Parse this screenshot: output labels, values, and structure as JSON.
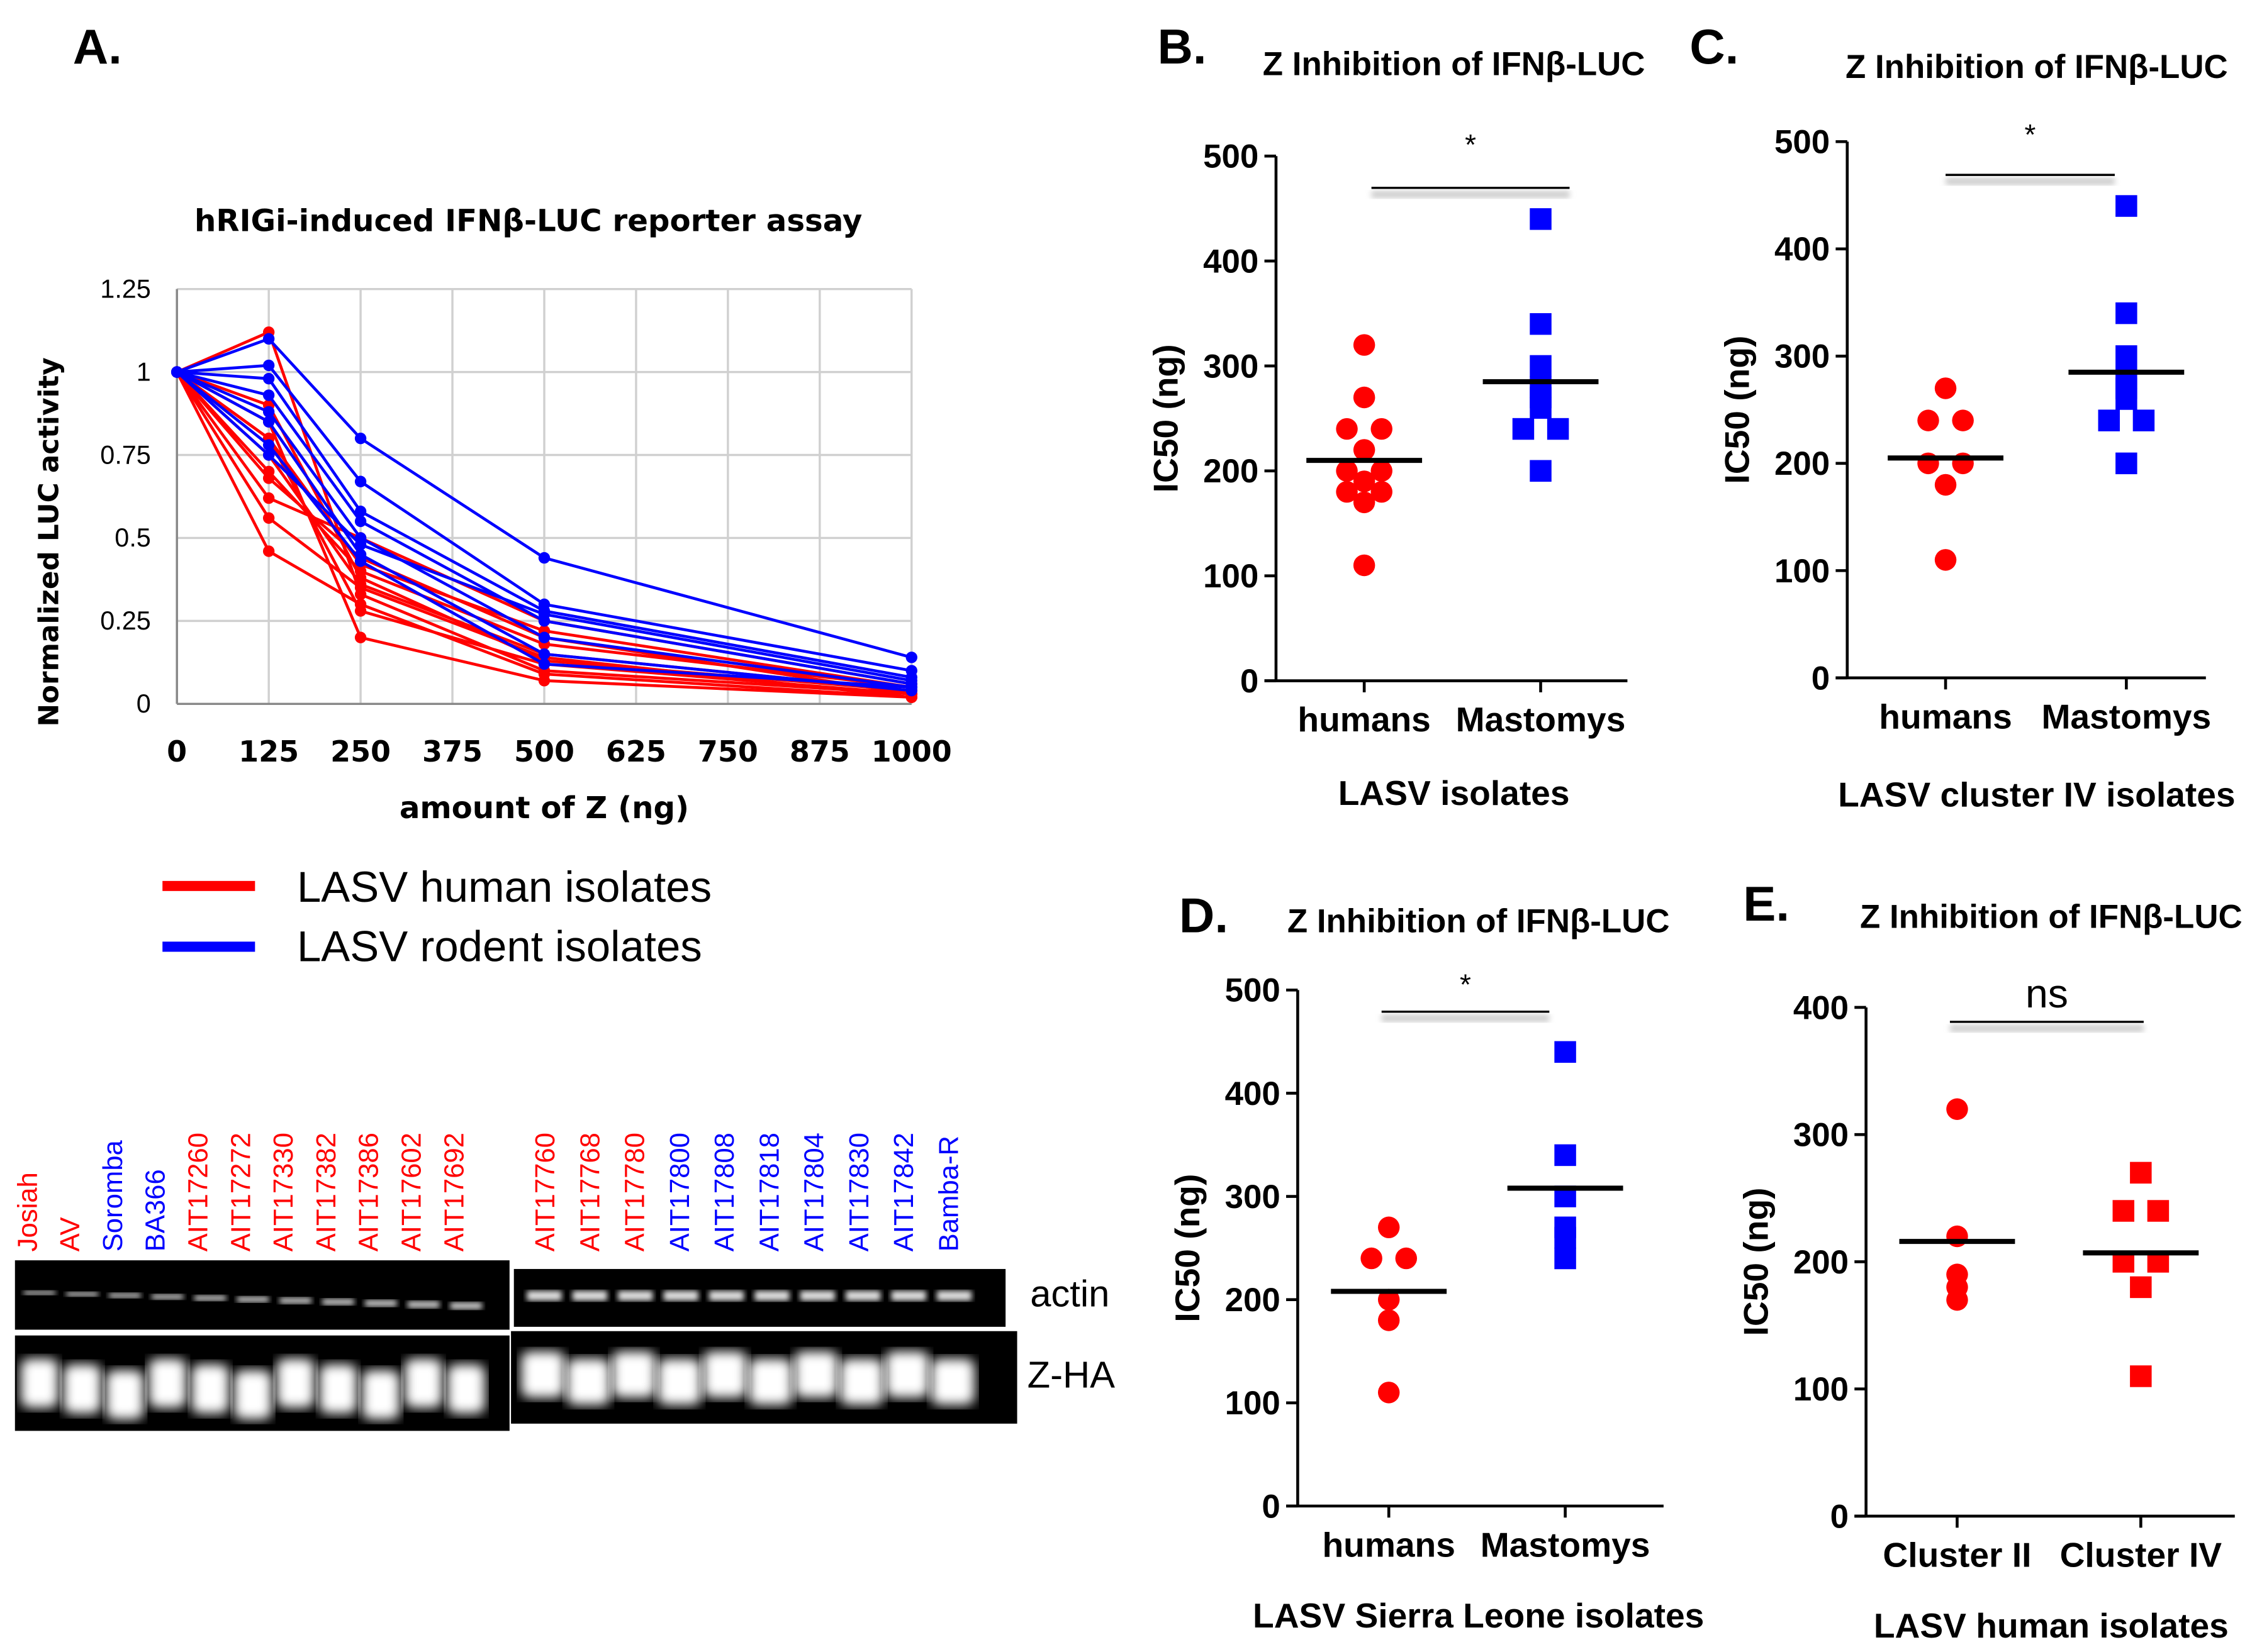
{
  "colors": {
    "human": "#ff0000",
    "rodent": "#0000ff",
    "grid": "#d0d0d0",
    "black": "#000000"
  },
  "chart_data": [
    {
      "panel": "A.",
      "type": "line",
      "title": "hRIGi-induced IFNβ-LUC reporter assay",
      "xlabel": "amount of Z (ng)",
      "ylabel": "Normalized LUC activity",
      "x": [
        0,
        125,
        250,
        500,
        1000
      ],
      "xticks": [
        "0",
        "125",
        "250",
        "375",
        "500",
        "625",
        "750",
        "875",
        "1000"
      ],
      "yticks": [
        "0",
        "0.25",
        "0.5",
        "0.75",
        "1",
        "1.25"
      ],
      "xlim": [
        0,
        1000
      ],
      "ylim": [
        0,
        1.25
      ],
      "grid": true,
      "legend": [
        {
          "label": "LASV human isolates",
          "color": "#ff0000"
        },
        {
          "label": "LASV rodent isolates",
          "color": "#0000ff"
        }
      ],
      "series": [
        {
          "group": "human",
          "values": [
            1,
            1.12,
            0.33,
            0.1,
            0.03
          ]
        },
        {
          "group": "human",
          "values": [
            1,
            0.85,
            0.2,
            0.07,
            0.02
          ]
        },
        {
          "group": "human",
          "values": [
            1,
            0.8,
            0.28,
            0.12,
            0.03
          ]
        },
        {
          "group": "human",
          "values": [
            1,
            0.75,
            0.36,
            0.15,
            0.04
          ]
        },
        {
          "group": "human",
          "values": [
            1,
            0.7,
            0.4,
            0.18,
            0.05
          ]
        },
        {
          "group": "human",
          "values": [
            1,
            0.68,
            0.44,
            0.2,
            0.03
          ]
        },
        {
          "group": "human",
          "values": [
            1,
            0.62,
            0.5,
            0.25,
            0.06
          ]
        },
        {
          "group": "human",
          "values": [
            1,
            0.56,
            0.35,
            0.14,
            0.02
          ]
        },
        {
          "group": "human",
          "values": [
            1,
            0.46,
            0.3,
            0.09,
            0.02
          ]
        },
        {
          "group": "human",
          "values": [
            1,
            0.9,
            0.38,
            0.13,
            0.04
          ]
        },
        {
          "group": "human",
          "values": [
            1,
            0.8,
            0.42,
            0.22,
            0.05
          ]
        },
        {
          "group": "rodent",
          "values": [
            1,
            1.1,
            0.8,
            0.44,
            0.14
          ]
        },
        {
          "group": "rodent",
          "values": [
            1,
            1.02,
            0.67,
            0.3,
            0.1
          ]
        },
        {
          "group": "rodent",
          "values": [
            1,
            0.98,
            0.58,
            0.28,
            0.08
          ]
        },
        {
          "group": "rodent",
          "values": [
            1,
            0.93,
            0.55,
            0.25,
            0.06
          ]
        },
        {
          "group": "rodent",
          "values": [
            1,
            0.88,
            0.5,
            0.2,
            0.05
          ]
        },
        {
          "group": "rodent",
          "values": [
            1,
            0.85,
            0.45,
            0.15,
            0.04
          ]
        },
        {
          "group": "rodent",
          "values": [
            1,
            0.78,
            0.43,
            0.12,
            0.05
          ]
        },
        {
          "group": "rodent",
          "values": [
            1,
            0.75,
            0.48,
            0.27,
            0.07
          ]
        }
      ]
    },
    {
      "panel": "B.",
      "type": "scatter",
      "title": "Z Inhibition of IFNβ-LUC",
      "ylabel": "IC50 (ng)",
      "xlabel": "LASV isolates",
      "ylim": [
        0,
        500
      ],
      "yticks": [
        "0",
        "100",
        "200",
        "300",
        "400",
        "500"
      ],
      "significance": "*",
      "groups": [
        {
          "label": "humans",
          "marker": "circle",
          "color": "#ff0000",
          "mean": 210,
          "values": [
            320,
            270,
            240,
            240,
            220,
            200,
            200,
            190,
            180,
            180,
            170,
            110
          ]
        },
        {
          "label": "Mastomys",
          "marker": "square",
          "color": "#0000ff",
          "mean": 285,
          "values": [
            440,
            340,
            300,
            280,
            270,
            260,
            240,
            240,
            200
          ]
        }
      ]
    },
    {
      "panel": "C.",
      "type": "scatter",
      "title": "Z Inhibition of IFNβ-LUC",
      "ylabel": "IC50 (ng)",
      "xlabel": "LASV cluster IV isolates",
      "ylim": [
        0,
        500
      ],
      "yticks": [
        "0",
        "100",
        "200",
        "300",
        "400",
        "500"
      ],
      "significance": "*",
      "groups": [
        {
          "label": "humans",
          "marker": "circle",
          "color": "#ff0000",
          "mean": 205,
          "values": [
            270,
            240,
            240,
            200,
            200,
            180,
            110
          ]
        },
        {
          "label": "Mastomys",
          "marker": "square",
          "color": "#0000ff",
          "mean": 285,
          "values": [
            440,
            340,
            300,
            280,
            270,
            260,
            240,
            240,
            200
          ]
        }
      ]
    },
    {
      "panel": "D.",
      "type": "scatter",
      "title": "Z Inhibition of IFNβ-LUC",
      "ylabel": "IC50 (ng)",
      "xlabel": "LASV Sierra Leone isolates",
      "ylim": [
        0,
        500
      ],
      "yticks": [
        "0",
        "100",
        "200",
        "300",
        "400",
        "500"
      ],
      "significance": "*",
      "groups": [
        {
          "label": "humans",
          "marker": "circle",
          "color": "#ff0000",
          "mean": 208,
          "values": [
            270,
            240,
            240,
            200,
            180,
            110
          ]
        },
        {
          "label": "Mastomys",
          "marker": "square",
          "color": "#0000ff",
          "mean": 308,
          "values": [
            440,
            340,
            300,
            270,
            260,
            240
          ]
        }
      ]
    },
    {
      "panel": "E.",
      "type": "scatter",
      "title": "Z Inhibition of IFNβ-LUC",
      "ylabel": "IC50 (ng)",
      "xlabel": "LASV human isolates",
      "ylim": [
        0,
        400
      ],
      "yticks": [
        "0",
        "100",
        "200",
        "300",
        "400"
      ],
      "significance": "ns",
      "groups": [
        {
          "label": "Cluster II",
          "marker": "circle",
          "color": "#ff0000",
          "mean": 216,
          "values": [
            320,
            220,
            190,
            180,
            170
          ]
        },
        {
          "label": "Cluster IV",
          "marker": "square",
          "color": "#ff0000",
          "mean": 207,
          "values": [
            270,
            240,
            240,
            200,
            200,
            180,
            110
          ]
        }
      ]
    }
  ],
  "blot": {
    "rows": [
      "actin",
      "Z-HA"
    ],
    "left_lanes": [
      {
        "label": "Josiah",
        "group": "human"
      },
      {
        "label": "AV",
        "group": "human"
      },
      {
        "label": "Soromba",
        "group": "rodent"
      },
      {
        "label": "BA366",
        "group": "rodent"
      },
      {
        "label": "AIT17260",
        "group": "human"
      },
      {
        "label": "AIT17272",
        "group": "human"
      },
      {
        "label": "AIT17330",
        "group": "human"
      },
      {
        "label": "AIT17382",
        "group": "human"
      },
      {
        "label": "AIT17386",
        "group": "human"
      },
      {
        "label": "AIT17602",
        "group": "human"
      },
      {
        "label": "AIT17692",
        "group": "human"
      }
    ],
    "right_lanes": [
      {
        "label": "AIT17760",
        "group": "human"
      },
      {
        "label": "AIT17768",
        "group": "human"
      },
      {
        "label": "AIT17780",
        "group": "human"
      },
      {
        "label": "AIT17800",
        "group": "rodent"
      },
      {
        "label": "AIT17808",
        "group": "rodent"
      },
      {
        "label": "AIT17818",
        "group": "rodent"
      },
      {
        "label": "AIT17804",
        "group": "rodent"
      },
      {
        "label": "AIT17830",
        "group": "rodent"
      },
      {
        "label": "AIT17842",
        "group": "rodent"
      },
      {
        "label": "Bamba-R",
        "group": "rodent"
      }
    ]
  }
}
